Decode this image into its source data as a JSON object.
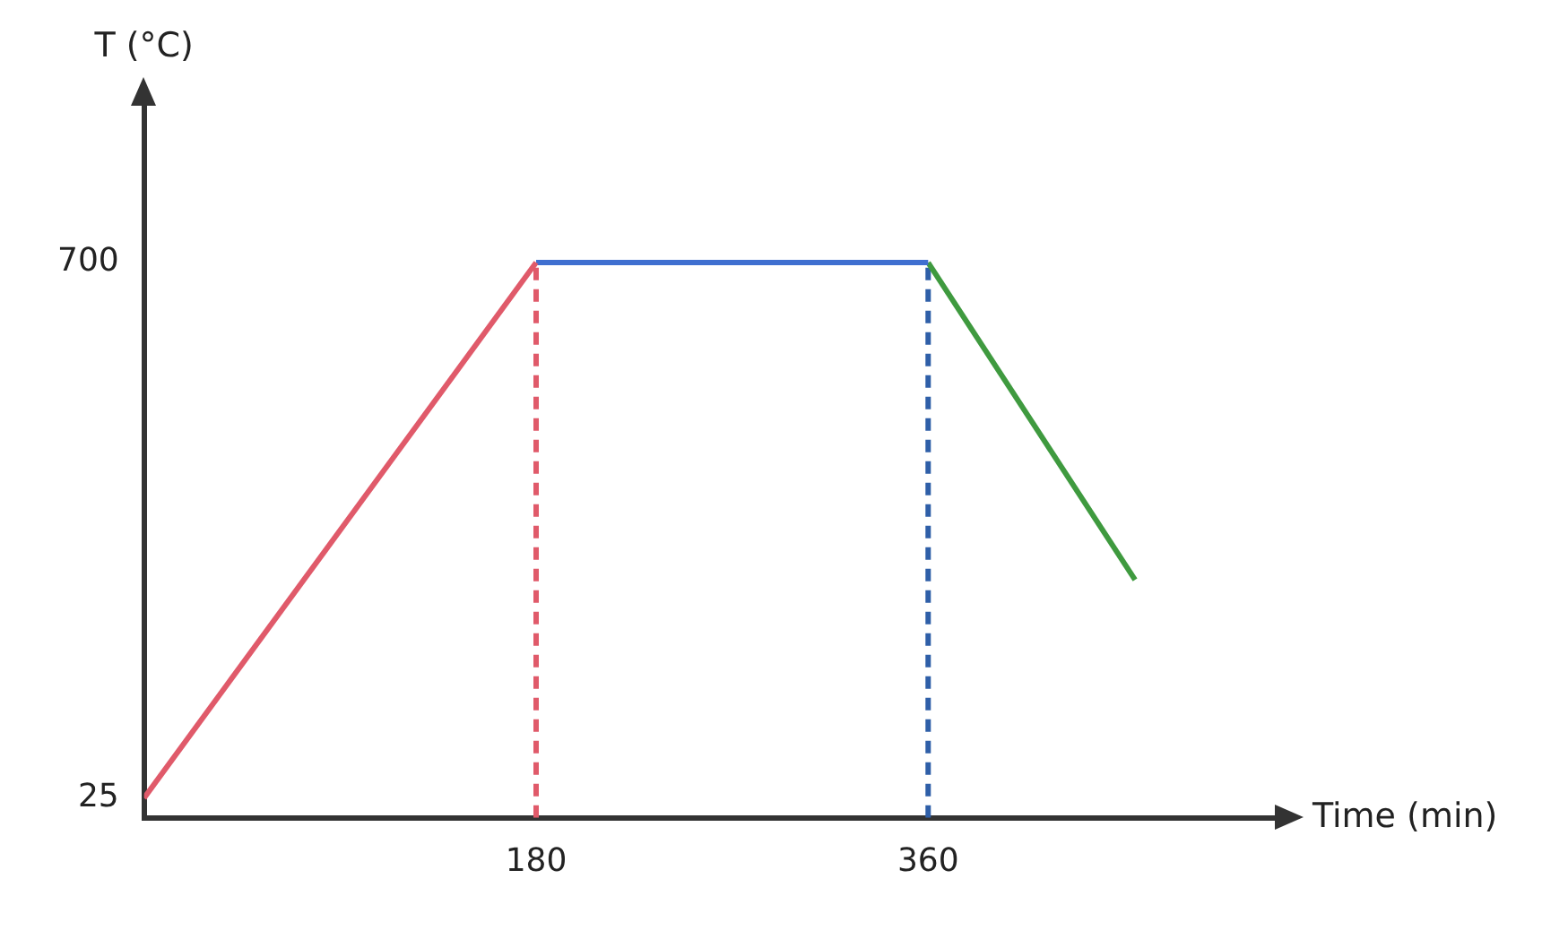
{
  "chart_data": {
    "type": "line",
    "xlabel": "Time (min)",
    "ylabel": "T (°C)",
    "xlim": [
      0,
      520
    ],
    "ylim": [
      0,
      900
    ],
    "xticks": [
      180,
      360
    ],
    "yticks": [
      25,
      700
    ],
    "grid": false,
    "marker": "none",
    "legend": false,
    "series": [
      {
        "x": [
          0,
          180
        ],
        "values": [
          25,
          700
        ],
        "color": "#e05a6a",
        "line_style": "solid"
      },
      {
        "x": [
          180,
          360
        ],
        "values": [
          700,
          700
        ],
        "color": "#3f6fd0",
        "line_style": "solid"
      },
      {
        "x": [
          360,
          455
        ],
        "values": [
          700,
          300
        ],
        "color": "#3f9a3f",
        "line_style": "solid"
      },
      {
        "x": [
          180,
          180
        ],
        "values": [
          0,
          700
        ],
        "color": "#e05a6a",
        "line_style": "dashed"
      },
      {
        "x": [
          360,
          360
        ],
        "values": [
          0,
          700
        ],
        "color": "#2f5fa8",
        "line_style": "dashed"
      }
    ]
  }
}
